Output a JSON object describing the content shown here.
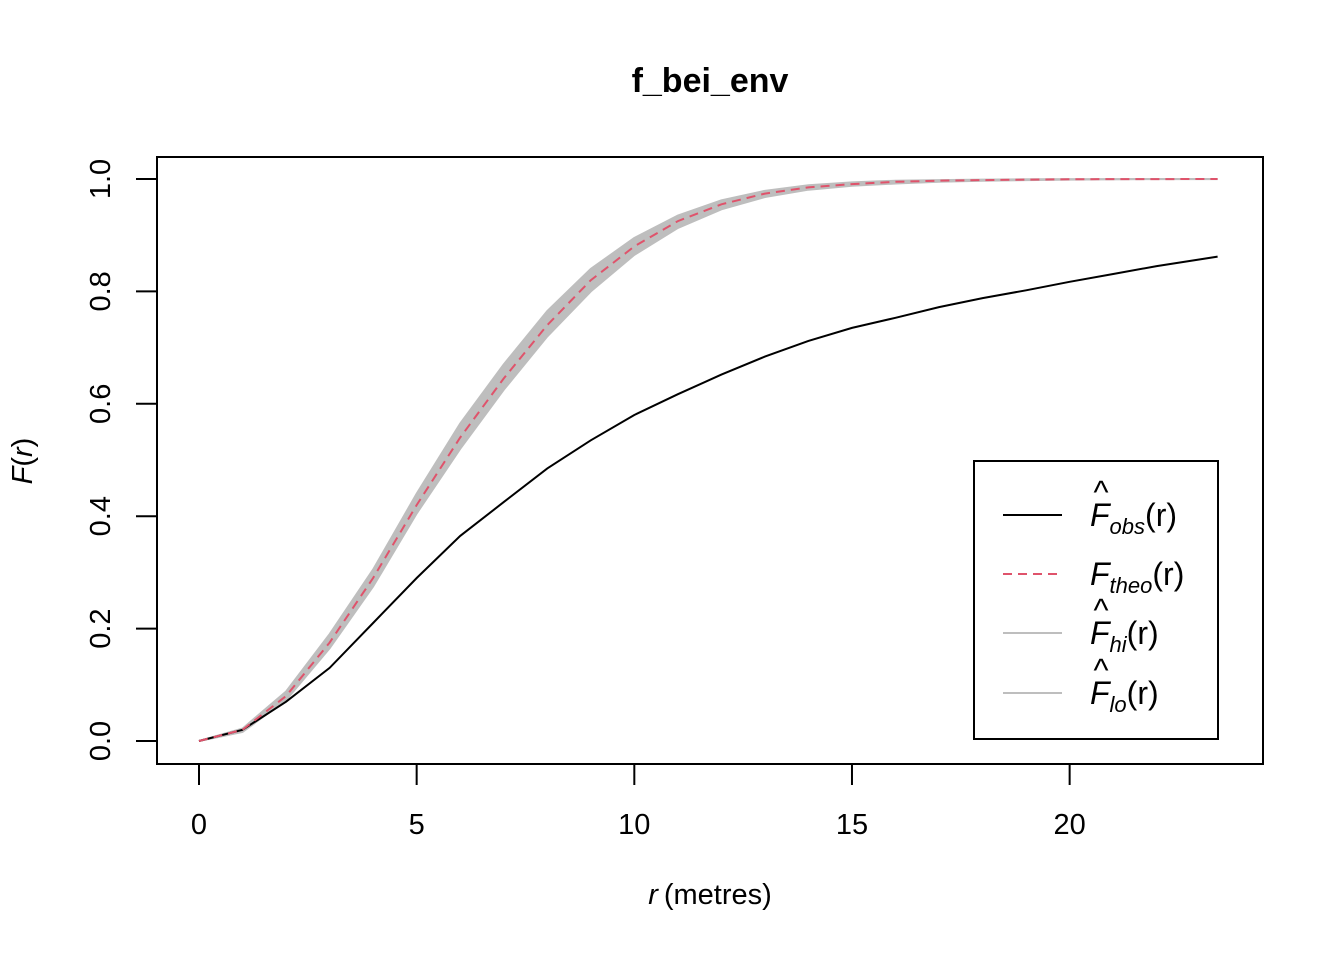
{
  "chart_data": {
    "type": "line",
    "title": "f_bei_env",
    "xlabel": {
      "var": "r",
      "unit": "(metres)"
    },
    "ylabel": {
      "func": "F",
      "open": "(",
      "var": "r",
      "close": ")"
    },
    "xlim": [
      0,
      23.5
    ],
    "ylim": [
      0,
      1
    ],
    "xticks": [
      0,
      5,
      10,
      15,
      20
    ],
    "yticks": [
      0.0,
      0.2,
      0.4,
      0.6,
      0.8,
      1.0
    ],
    "ytick_labels": [
      "0.0",
      "0.2",
      "0.4",
      "0.6",
      "0.8",
      "1.0"
    ],
    "grid": false,
    "legend_position": "bottom-right",
    "colors": {
      "obs": "#000000",
      "theo": "#DF536B",
      "envelope": "#BEBEBE",
      "hi": "#BEBEBE",
      "lo": "#BEBEBE"
    },
    "x": [
      0,
      1,
      2,
      3,
      4,
      5,
      6,
      7,
      8,
      9,
      10,
      11,
      12,
      13,
      14,
      15,
      16,
      17,
      18,
      19,
      20,
      21,
      22,
      23.4
    ],
    "series": [
      {
        "id": "obs",
        "label": {
          "hat": "^",
          "base": "F",
          "sub": "obs",
          "arg": "(r)"
        },
        "style": "solid",
        "values": [
          0,
          0.02,
          0.07,
          0.13,
          0.21,
          0.29,
          0.365,
          0.425,
          0.485,
          0.535,
          0.58,
          0.617,
          0.652,
          0.684,
          0.712,
          0.735,
          0.753,
          0.772,
          0.788,
          0.802,
          0.817,
          0.831,
          0.845,
          0.862
        ]
      },
      {
        "id": "theo",
        "label": {
          "hat": "",
          "base": "F",
          "sub": "theo",
          "arg": "(r)"
        },
        "style": "dashed",
        "values": [
          0,
          0.02,
          0.08,
          0.175,
          0.29,
          0.42,
          0.54,
          0.645,
          0.74,
          0.82,
          0.88,
          0.925,
          0.955,
          0.974,
          0.985,
          0.991,
          0.995,
          0.997,
          0.998,
          0.999,
          0.9995,
          0.9998,
          0.9999,
          1.0
        ]
      },
      {
        "id": "hi",
        "label": {
          "hat": "^",
          "base": "F",
          "sub": "hi",
          "arg": "(r)"
        },
        "style": "solid",
        "values": [
          0,
          0.022,
          0.088,
          0.19,
          0.305,
          0.44,
          0.565,
          0.67,
          0.765,
          0.84,
          0.895,
          0.935,
          0.962,
          0.979,
          0.989,
          0.994,
          0.997,
          0.998,
          0.999,
          0.9995,
          0.9998,
          0.9999,
          1.0,
          1.0
        ]
      },
      {
        "id": "lo",
        "label": {
          "hat": "^",
          "base": "F",
          "sub": "lo",
          "arg": "(r)"
        },
        "style": "solid",
        "values": [
          0,
          0.016,
          0.073,
          0.165,
          0.275,
          0.405,
          0.52,
          0.625,
          0.72,
          0.8,
          0.865,
          0.913,
          0.946,
          0.968,
          0.981,
          0.988,
          0.992,
          0.995,
          0.997,
          0.998,
          0.999,
          0.9995,
          0.9998,
          0.9999
        ]
      }
    ]
  }
}
